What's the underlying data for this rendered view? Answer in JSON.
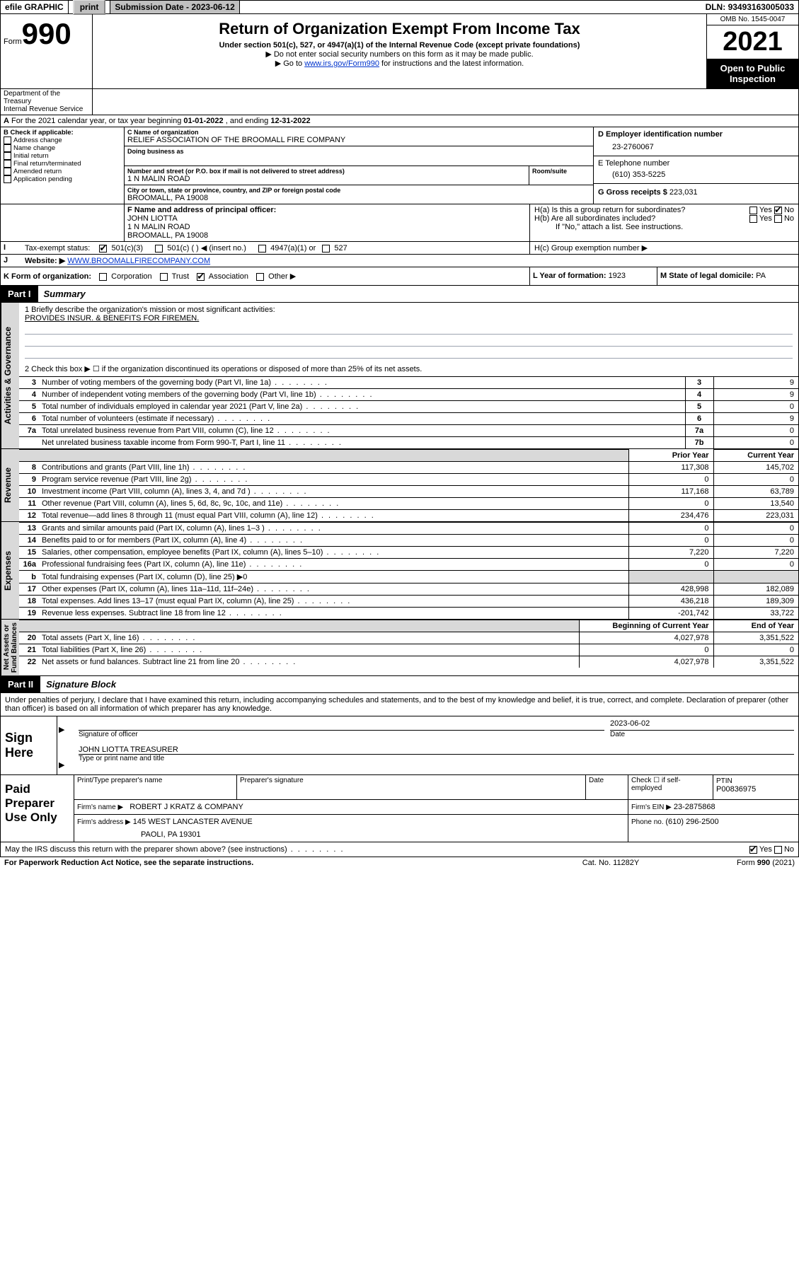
{
  "topbar": {
    "efile": "efile GRAPHIC",
    "print": "print",
    "subdate_label": "Submission Date - ",
    "subdate": "2023-06-12",
    "dln_label": "DLN: ",
    "dln": "93493163005033"
  },
  "header": {
    "form_word": "Form",
    "form_num": "990",
    "title": "Return of Organization Exempt From Income Tax",
    "subtitle": "Under section 501(c), 527, or 4947(a)(1) of the Internal Revenue Code (except private foundations)",
    "note1": "Do not enter social security numbers on this form as it may be made public.",
    "note2_a": "Go to ",
    "note2_link": "www.irs.gov/Form990",
    "note2_b": " for instructions and the latest information.",
    "dept": "Department of the Treasury\nInternal Revenue Service",
    "omb": "OMB No. 1545-0047",
    "year": "2021",
    "open": "Open to Public Inspection"
  },
  "A": {
    "text_a": "For the 2021 calendar year, or tax year beginning ",
    "begin": "01-01-2022",
    "text_b": " , and ending ",
    "end": "12-31-2022"
  },
  "B": {
    "label": "B Check if applicable:",
    "opts": [
      "Address change",
      "Name change",
      "Initial return",
      "Final return/terminated",
      "Amended return",
      "Application pending"
    ]
  },
  "C": {
    "name_label": "C Name of organization",
    "name": "RELIEF ASSOCIATION OF THE BROOMALL FIRE COMPANY",
    "dba_label": "Doing business as",
    "dba": "",
    "street_label": "Number and street (or P.O. box if mail is not delivered to street address)",
    "room_label": "Room/suite",
    "street": "1 N MALIN ROAD",
    "city_label": "City or town, state or province, country, and ZIP or foreign postal code",
    "city": "BROOMALL, PA  19008"
  },
  "D": {
    "label": "D Employer identification number",
    "value": "23-2760067"
  },
  "E": {
    "label": "E Telephone number",
    "value": "(610) 353-5225"
  },
  "G": {
    "label": "G Gross receipts $",
    "value": "223,031"
  },
  "F": {
    "label": "F  Name and address of principal officer:",
    "name": "JOHN LIOTTA",
    "addr1": "1 N MALIN ROAD",
    "addr2": "BROOMALL, PA  19008"
  },
  "H": {
    "a_label": "H(a)  Is this a group return for subordinates?",
    "a_yes": "Yes",
    "a_no": "No",
    "b_label": "H(b)  Are all subordinates included?",
    "b_note": "If \"No,\" attach a list. See instructions.",
    "c_label": "H(c)  Group exemption number ▶"
  },
  "I": {
    "label": "Tax-exempt status:",
    "opts": [
      "501(c)(3)",
      "501(c) (   ) ◀ (insert no.)",
      "4947(a)(1) or",
      "527"
    ]
  },
  "J": {
    "label": "Website: ▶",
    "value": "WWW.BROOMALLFIRECOMPANY.COM"
  },
  "K": {
    "label": "K Form of organization:",
    "opts": [
      "Corporation",
      "Trust",
      "Association",
      "Other ▶"
    ]
  },
  "L": {
    "label": "L Year of formation: ",
    "value": "1923"
  },
  "M": {
    "label": "M State of legal domicile: ",
    "value": "PA"
  },
  "part1": {
    "bar": "Part I",
    "title": "Summary",
    "q1_label": "1   Briefly describe the organization's mission or most significant activities:",
    "mission": "PROVIDES INSUR. & BENEFITS FOR FIREMEN.",
    "q2": "2   Check this box ▶ ☐  if the organization discontinued its operations or disposed of more than 25% of its net assets.",
    "gov_rows": [
      {
        "n": "3",
        "desc": "Number of voting members of the governing body (Part VI, line 1a)",
        "id": "3",
        "v": "9"
      },
      {
        "n": "4",
        "desc": "Number of independent voting members of the governing body (Part VI, line 1b)",
        "id": "4",
        "v": "9"
      },
      {
        "n": "5",
        "desc": "Total number of individuals employed in calendar year 2021 (Part V, line 2a)",
        "id": "5",
        "v": "0"
      },
      {
        "n": "6",
        "desc": "Total number of volunteers (estimate if necessary)",
        "id": "6",
        "v": "9"
      },
      {
        "n": "7a",
        "desc": "Total unrelated business revenue from Part VIII, column (C), line 12",
        "id": "7a",
        "v": "0"
      },
      {
        "n": "",
        "desc": "Net unrelated business taxable income from Form 990-T, Part I, line 11",
        "id": "7b",
        "v": "0"
      }
    ],
    "col_prior": "Prior Year",
    "col_current": "Current Year",
    "rev_rows": [
      {
        "n": "8",
        "desc": "Contributions and grants (Part VIII, line 1h)",
        "p": "117,308",
        "c": "145,702"
      },
      {
        "n": "9",
        "desc": "Program service revenue (Part VIII, line 2g)",
        "p": "0",
        "c": "0"
      },
      {
        "n": "10",
        "desc": "Investment income (Part VIII, column (A), lines 3, 4, and 7d )",
        "p": "117,168",
        "c": "63,789"
      },
      {
        "n": "11",
        "desc": "Other revenue (Part VIII, column (A), lines 5, 6d, 8c, 9c, 10c, and 11e)",
        "p": "0",
        "c": "13,540"
      },
      {
        "n": "12",
        "desc": "Total revenue—add lines 8 through 11 (must equal Part VIII, column (A), line 12)",
        "p": "234,476",
        "c": "223,031"
      }
    ],
    "exp_rows": [
      {
        "n": "13",
        "desc": "Grants and similar amounts paid (Part IX, column (A), lines 1–3 )",
        "p": "0",
        "c": "0"
      },
      {
        "n": "14",
        "desc": "Benefits paid to or for members (Part IX, column (A), line 4)",
        "p": "0",
        "c": "0"
      },
      {
        "n": "15",
        "desc": "Salaries, other compensation, employee benefits (Part IX, column (A), lines 5–10)",
        "p": "7,220",
        "c": "7,220"
      },
      {
        "n": "16a",
        "desc": "Professional fundraising fees (Part IX, column (A), line 11e)",
        "p": "0",
        "c": "0"
      },
      {
        "n": "b",
        "desc": "Total fundraising expenses (Part IX, column (D), line 25) ▶0",
        "p": "grey",
        "c": "grey"
      },
      {
        "n": "17",
        "desc": "Other expenses (Part IX, column (A), lines 11a–11d, 11f–24e)",
        "p": "428,998",
        "c": "182,089"
      },
      {
        "n": "18",
        "desc": "Total expenses. Add lines 13–17 (must equal Part IX, column (A), line 25)",
        "p": "436,218",
        "c": "189,309"
      },
      {
        "n": "19",
        "desc": "Revenue less expenses. Subtract line 18 from line 12",
        "p": "-201,742",
        "c": "33,722"
      }
    ],
    "col_begin": "Beginning of Current Year",
    "col_end": "End of Year",
    "na_rows": [
      {
        "n": "20",
        "desc": "Total assets (Part X, line 16)",
        "p": "4,027,978",
        "c": "3,351,522"
      },
      {
        "n": "21",
        "desc": "Total liabilities (Part X, line 26)",
        "p": "0",
        "c": "0"
      },
      {
        "n": "22",
        "desc": "Net assets or fund balances. Subtract line 21 from line 20",
        "p": "4,027,978",
        "c": "3,351,522"
      }
    ],
    "vtab_gov": "Activities & Governance",
    "vtab_rev": "Revenue",
    "vtab_exp": "Expenses",
    "vtab_na": "Net Assets or\nFund Balances"
  },
  "part2": {
    "bar": "Part II",
    "title": "Signature Block",
    "jurat": "Under penalties of perjury, I declare that I have examined this return, including accompanying schedules and statements, and to the best of my knowledge and belief, it is true, correct, and complete. Declaration of preparer (other than officer) is based on all information of which preparer has any knowledge.",
    "sign_here": "Sign Here",
    "sig_officer": "Signature of officer",
    "sig_date": "Date",
    "sig_date_val": "2023-06-02",
    "officer_name": "JOHN LIOTTA TREASURER",
    "type_name": "Type or print name and title",
    "paid": "Paid Preparer Use Only",
    "col_prep_name": "Print/Type preparer's name",
    "col_prep_sig": "Preparer's signature",
    "col_date": "Date",
    "check_se": "Check ☐ if self-employed",
    "ptin_lbl": "PTIN",
    "ptin": "P00836975",
    "firm_name_lbl": "Firm's name      ▶",
    "firm_name": "ROBERT J KRATZ & COMPANY",
    "firm_ein_lbl": "Firm's EIN ▶",
    "firm_ein": "23-2875868",
    "firm_addr_lbl": "Firm's address ▶",
    "firm_addr1": "145 WEST LANCASTER AVENUE",
    "firm_addr2": "PAOLI, PA  19301",
    "phone_lbl": "Phone no. ",
    "phone": "(610) 296-2500",
    "discuss": "May the IRS discuss this return with the preparer shown above? (see instructions)",
    "yes": "Yes",
    "no": "No"
  },
  "footer": {
    "left": "For Paperwork Reduction Act Notice, see the separate instructions.",
    "mid": "Cat. No. 11282Y",
    "right": "Form 990 (2021)"
  }
}
